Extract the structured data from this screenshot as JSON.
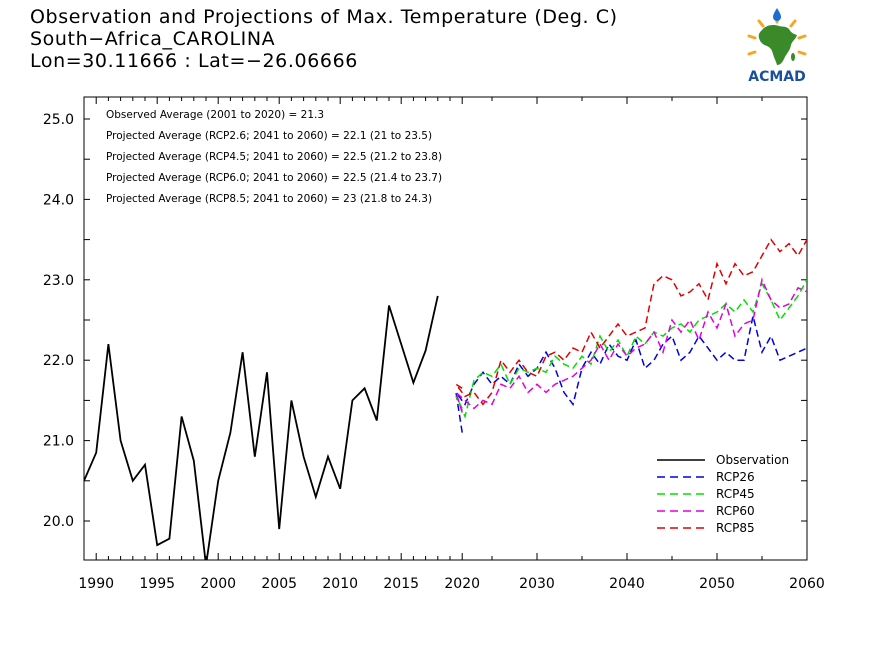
{
  "title": {
    "line1": "Observation and Projections of Max. Temperature (Deg. C)",
    "line2": "South−Africa_CAROLINA",
    "line3": "Lon=30.11666 : Lat=−26.06666"
  },
  "logo": {
    "text": "ACMAD",
    "colors": {
      "africa": "#3a8a2a",
      "sun": "#f5a623",
      "text": "#1a4fa0",
      "drop": "#1a6fd0"
    }
  },
  "stats": [
    "Observed Average (2001 to 2020) = 21.3",
    "Projected Average (RCP2.6; 2041 to 2060) = 22.1 (21 to 23.5)",
    "Projected Average (RCP4.5; 2041 to 2060) = 22.5 (21.2 to 23.8)",
    "Projected Average (RCP6.0; 2041 to 2060) = 22.5 (21.4 to 23.7)",
    "Projected Average (RCP8.5; 2041 to 2060) = 23 (21.8 to 24.3)"
  ],
  "chart_data": {
    "type": "line",
    "xlim": [
      1989,
      2060
    ],
    "ylim": [
      19.5,
      25.2
    ],
    "x_tick_labels": [
      1990,
      1995,
      2000,
      2005,
      2010,
      2015,
      2020,
      2030,
      2040,
      2050,
      2060
    ],
    "y_tick_labels": [
      "20.0",
      "21.0",
      "22.0",
      "23.0",
      "24.0",
      "25.0"
    ],
    "legend_position": "bottom-right",
    "series": [
      {
        "name": "Observation",
        "color": "#000000",
        "dashed": false,
        "x": [
          1989,
          1990,
          1991,
          1992,
          1993,
          1994,
          1995,
          1996,
          1997,
          1998,
          1999,
          2000,
          2001,
          2002,
          2003,
          2004,
          2005,
          2006,
          2007,
          2008,
          2009,
          2010,
          2011,
          2012,
          2013,
          2014,
          2015,
          2016,
          2017,
          2018,
          2019
        ],
        "y": [
          20.5,
          20.85,
          22.2,
          21.0,
          20.5,
          20.7,
          19.7,
          19.78,
          21.3,
          20.75,
          19.45,
          20.5,
          21.1,
          22.1,
          20.8,
          21.85,
          19.9,
          21.5,
          20.8,
          20.3,
          20.8,
          20.4,
          21.5,
          21.65,
          21.25,
          22.68,
          22.2,
          21.72,
          22.12,
          22.8,
          null
        ]
      },
      {
        "name": "RCP26",
        "color": "#0000e0",
        "dashed": true,
        "x": [
          2020,
          2021,
          2022,
          2023,
          2024,
          2025,
          2026,
          2027,
          2028,
          2029,
          2030,
          2031,
          2032,
          2033,
          2034,
          2035,
          2036,
          2037,
          2038,
          2039,
          2040,
          2041,
          2042,
          2043,
          2044,
          2045,
          2046,
          2047,
          2048,
          2049,
          2050,
          2051,
          2052,
          2053,
          2054,
          2055,
          2056,
          2057,
          2058,
          2059,
          2060
        ],
        "y": [
          21.1,
          21.6,
          21.45,
          21.7,
          21.85,
          21.7,
          21.8,
          21.7,
          21.95,
          21.8,
          21.9,
          22.1,
          21.9,
          21.6,
          21.45,
          21.9,
          22.1,
          21.95,
          22.2,
          22.05,
          22.0,
          22.25,
          21.9,
          22.0,
          22.2,
          22.3,
          22.0,
          22.1,
          22.3,
          22.15,
          22.0,
          22.1,
          22.0,
          22.0,
          22.55,
          22.1,
          22.3,
          22.0,
          22.05,
          22.1,
          22.15
        ]
      },
      {
        "name": "RCP45",
        "color": "#00e000",
        "dashed": true,
        "x": [
          2020,
          2021,
          2022,
          2023,
          2024,
          2025,
          2026,
          2027,
          2028,
          2029,
          2030,
          2031,
          2032,
          2033,
          2034,
          2035,
          2036,
          2037,
          2038,
          2039,
          2040,
          2041,
          2042,
          2043,
          2044,
          2045,
          2046,
          2047,
          2048,
          2049,
          2050,
          2051,
          2052,
          2053,
          2054,
          2055,
          2056,
          2057,
          2058,
          2059,
          2060
        ],
        "y": [
          21.4,
          21.55,
          21.3,
          21.75,
          21.85,
          21.8,
          21.95,
          21.7,
          21.9,
          21.85,
          21.9,
          21.85,
          22.05,
          21.95,
          21.9,
          22.05,
          21.95,
          22.3,
          22.1,
          22.25,
          22.05,
          22.3,
          22.2,
          22.35,
          22.3,
          22.4,
          22.45,
          22.35,
          22.5,
          22.55,
          22.6,
          22.7,
          22.6,
          22.75,
          22.6,
          22.95,
          22.75,
          22.5,
          22.65,
          22.8,
          23.0
        ]
      },
      {
        "name": "RCP60",
        "color": "#e000e0",
        "dashed": true,
        "x": [
          2020,
          2021,
          2022,
          2023,
          2024,
          2025,
          2026,
          2027,
          2028,
          2029,
          2030,
          2031,
          2032,
          2033,
          2034,
          2035,
          2036,
          2037,
          2038,
          2039,
          2040,
          2041,
          2042,
          2043,
          2044,
          2045,
          2046,
          2047,
          2048,
          2049,
          2050,
          2051,
          2052,
          2053,
          2054,
          2055,
          2056,
          2057,
          2058,
          2059,
          2060
        ],
        "y": [
          21.35,
          21.6,
          21.5,
          21.4,
          21.5,
          21.45,
          21.7,
          21.65,
          21.8,
          21.6,
          21.7,
          21.6,
          21.7,
          21.75,
          21.8,
          21.9,
          22.0,
          22.2,
          22.0,
          22.2,
          22.05,
          22.15,
          22.2,
          22.35,
          22.1,
          22.5,
          22.35,
          22.5,
          22.25,
          22.6,
          22.4,
          22.7,
          22.3,
          22.45,
          22.5,
          23.0,
          22.75,
          22.65,
          22.7,
          22.9,
          22.85
        ]
      },
      {
        "name": "RCP85",
        "color": "#e00000",
        "dashed": true,
        "x": [
          2020,
          2021,
          2022,
          2023,
          2024,
          2025,
          2026,
          2027,
          2028,
          2029,
          2030,
          2031,
          2032,
          2033,
          2034,
          2035,
          2036,
          2037,
          2038,
          2039,
          2040,
          2041,
          2042,
          2043,
          2044,
          2045,
          2046,
          2047,
          2048,
          2049,
          2050,
          2051,
          2052,
          2053,
          2054,
          2055,
          2056,
          2057,
          2058,
          2059,
          2060
        ],
        "y": [
          21.65,
          21.7,
          21.55,
          21.6,
          21.45,
          21.6,
          22.0,
          21.85,
          22.0,
          21.85,
          21.8,
          22.05,
          22.1,
          22.0,
          22.15,
          22.1,
          22.35,
          22.15,
          22.3,
          22.45,
          22.3,
          22.35,
          22.4,
          22.95,
          23.05,
          23.0,
          22.8,
          22.85,
          22.95,
          22.75,
          23.2,
          22.95,
          23.2,
          23.05,
          23.1,
          23.3,
          23.5,
          23.35,
          23.45,
          23.3,
          23.5
        ]
      }
    ]
  }
}
